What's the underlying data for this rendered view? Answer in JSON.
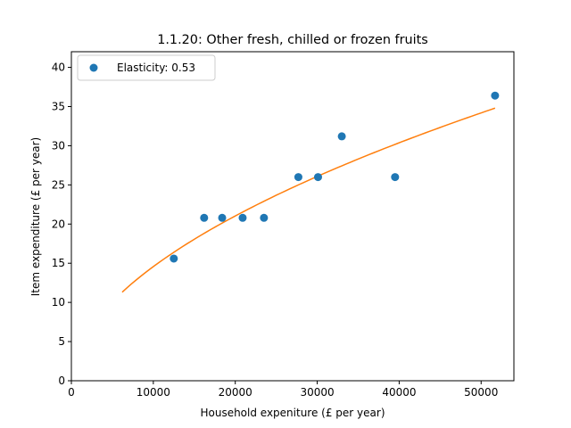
{
  "chart_data": {
    "type": "scatter",
    "title": "1.1.20: Other fresh, chilled or frozen fruits",
    "xlabel": "Household expeniture (£ per year)",
    "ylabel": "Item expenditure (£ per year)",
    "xlim": [
      0,
      54000
    ],
    "ylim": [
      0,
      42
    ],
    "xticks": [
      0,
      10000,
      20000,
      30000,
      40000,
      50000
    ],
    "yticks": [
      0,
      5,
      10,
      15,
      20,
      25,
      30,
      35,
      40
    ],
    "grid": false,
    "legend_position": "upper-left",
    "series": [
      {
        "name": "Elasticity: 0.53",
        "kind": "points",
        "color": "#1f77b4",
        "points": [
          {
            "x": 12500,
            "y": 15.6
          },
          {
            "x": 16200,
            "y": 20.8
          },
          {
            "x": 18400,
            "y": 20.8
          },
          {
            "x": 20900,
            "y": 20.8
          },
          {
            "x": 23500,
            "y": 20.8
          },
          {
            "x": 27700,
            "y": 26.0
          },
          {
            "x": 30100,
            "y": 26.0
          },
          {
            "x": 33000,
            "y": 31.2
          },
          {
            "x": 39500,
            "y": 26.0
          },
          {
            "x": 51700,
            "y": 36.4
          }
        ]
      },
      {
        "kind": "fit",
        "color": "#ff7f0e",
        "elasticity": 0.53,
        "x_range": [
          6200,
          51700
        ],
        "y_at_end": 34.8
      }
    ]
  }
}
